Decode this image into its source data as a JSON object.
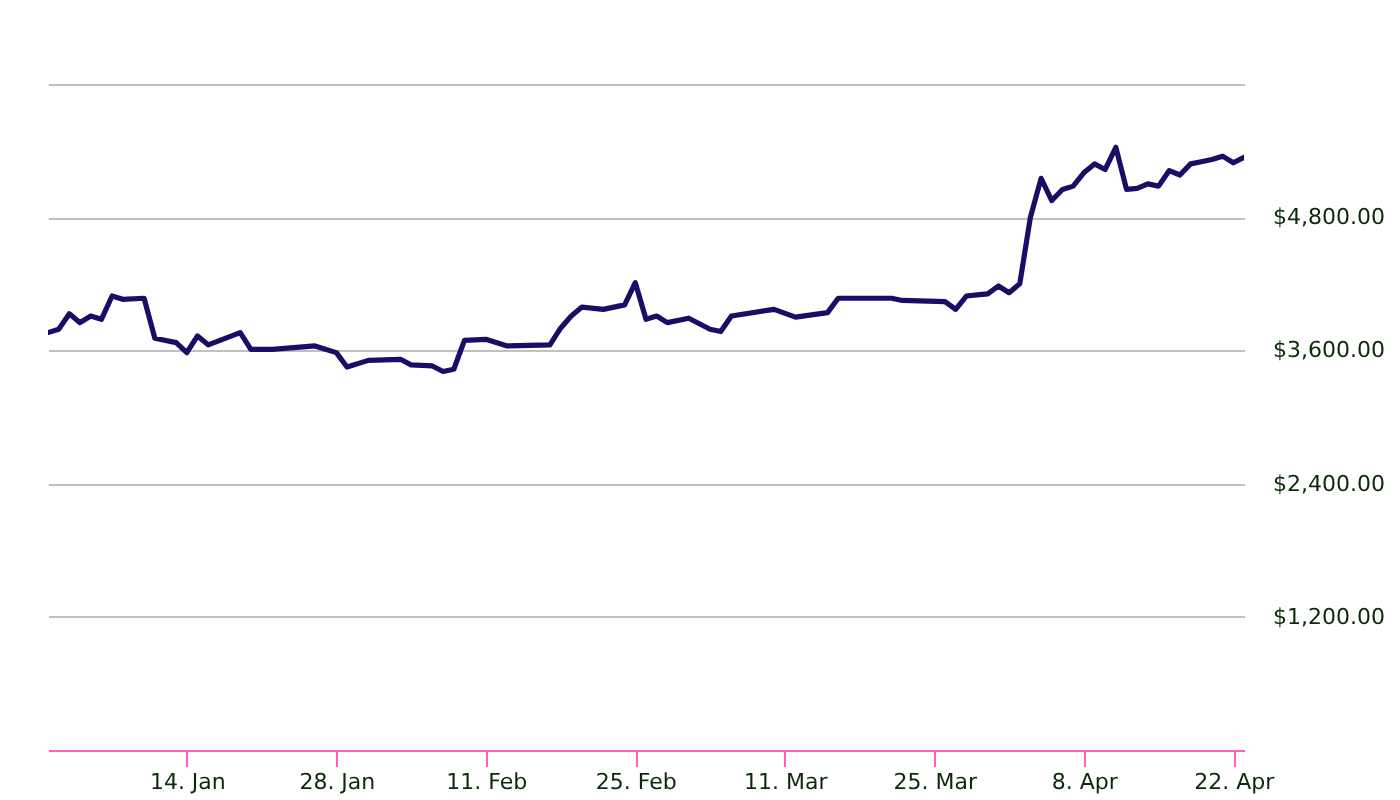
{
  "chart_data": {
    "type": "line",
    "x": [
      "--01-01",
      "--01-02",
      "--01-03",
      "--01-04",
      "--01-05",
      "--01-06",
      "--01-07",
      "--01-08",
      "--01-10",
      "--01-11",
      "--01-13",
      "--01-14",
      "--01-15",
      "--01-16",
      "--01-19",
      "--01-20",
      "--01-22",
      "--01-26",
      "--01-28",
      "--01-29",
      "--01-31",
      "--02-03",
      "--02-04",
      "--02-06",
      "--02-07",
      "--02-08",
      "--02-09",
      "--02-11",
      "--02-13",
      "--02-17",
      "--02-18",
      "--02-19",
      "--02-20",
      "--02-22",
      "--02-24",
      "--02-25",
      "--02-26",
      "--02-27",
      "--02-28",
      "--03-02",
      "--03-04",
      "--03-05",
      "--03-06",
      "--03-10",
      "--03-12",
      "--03-15",
      "--03-16",
      "--03-21",
      "--03-22",
      "--03-26",
      "--03-27",
      "--03-28",
      "--03-29",
      "--03-30",
      "--03-31",
      "--04-01",
      "--04-02",
      "--04-03",
      "--04-04",
      "--04-05",
      "--04-06",
      "--04-07",
      "--04-08",
      "--04-09",
      "--04-10",
      "--04-11",
      "--04-12",
      "--04-13",
      "--04-14",
      "--04-15",
      "--04-16",
      "--04-17",
      "--04-18",
      "--04-19",
      "--04-20",
      "--04-21",
      "--04-22",
      "--04-23"
    ],
    "series": [
      {
        "color": "#1a0d66",
        "values": [
          3760,
          3790,
          3930,
          3850,
          3910,
          3880,
          4090,
          4060,
          4070,
          3710,
          3670,
          3580,
          3730,
          3650,
          3760,
          3610,
          3610,
          3640,
          3580,
          3450,
          3510,
          3520,
          3470,
          3460,
          3410,
          3430,
          3690,
          3700,
          3640,
          3650,
          3800,
          3910,
          3990,
          3970,
          4010,
          4210,
          3880,
          3910,
          3850,
          3890,
          3790,
          3770,
          3910,
          3970,
          3900,
          3940,
          4070,
          4070,
          4050,
          4040,
          3970,
          4090,
          4100,
          4110,
          4180,
          4120,
          4200,
          4800,
          5150,
          4950,
          5050,
          5080,
          5200,
          5280,
          5230,
          5430,
          5050,
          5060,
          5100,
          5080,
          5220,
          5180,
          5280,
          5300,
          5320,
          5350,
          5290,
          5340
        ]
      }
    ],
    "xlim": [
      "--01-01",
      "--04-23"
    ],
    "xticks": [
      {
        "value": "--01-14",
        "label": "14. Jan"
      },
      {
        "value": "--01-28",
        "label": "28. Jan"
      },
      {
        "value": "--02-11",
        "label": "11. Feb"
      },
      {
        "value": "--02-25",
        "label": "25. Feb"
      },
      {
        "value": "--03-11",
        "label": "11. Mar"
      },
      {
        "value": "--03-25",
        "label": "25. Mar"
      },
      {
        "value": "--04-08",
        "label": "8. Apr"
      },
      {
        "value": "--04-22",
        "label": "22. Apr"
      }
    ],
    "ylim": [
      0,
      6000
    ],
    "yticks": [
      {
        "value": 0,
        "label": null
      },
      {
        "value": 1200,
        "label": "$1,200.00"
      },
      {
        "value": 2400,
        "label": "$2,400.00"
      },
      {
        "value": 3600,
        "label": "$3,600.00"
      },
      {
        "value": 4800,
        "label": "$4,800.00"
      },
      {
        "value": 6000,
        "label": null
      }
    ],
    "grid": "y",
    "marker": "none",
    "line_style": "solid"
  }
}
